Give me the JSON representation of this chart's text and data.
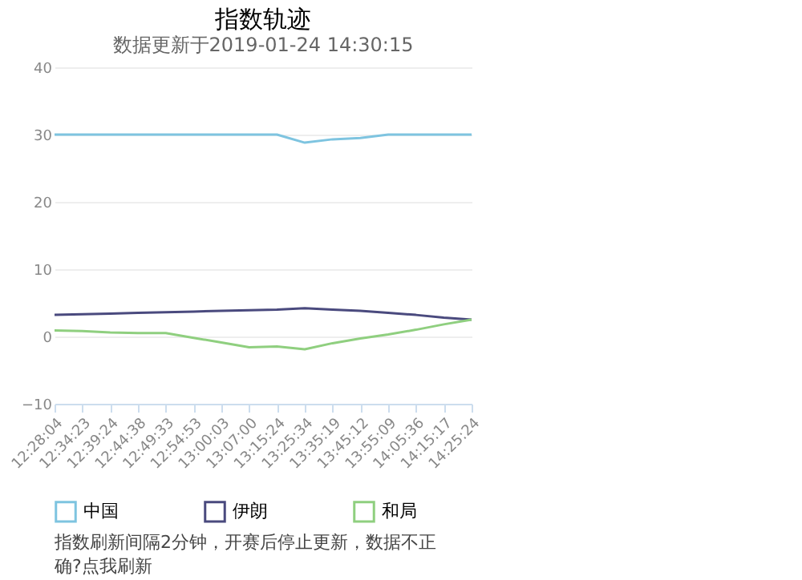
{
  "chart_data": {
    "type": "line",
    "title": "指数轨迹",
    "subtitle": "数据更新于2019-01-24 14:30:15",
    "categories": [
      "12:28:04",
      "12:34:23",
      "12:39:24",
      "12:44:38",
      "12:49:33",
      "12:54:53",
      "13:00:03",
      "13:07:00",
      "13:15:24",
      "13:25:34",
      "13:35:19",
      "13:45:12",
      "13:55:09",
      "14:05:36",
      "14:15:17",
      "14:25:24"
    ],
    "series": [
      {
        "name": "中国",
        "color": "#7ec4e0",
        "values": [
          30,
          30,
          30,
          30,
          30,
          30,
          30,
          30,
          30,
          28.8,
          29.3,
          29.5,
          30,
          30,
          30,
          30
        ]
      },
      {
        "name": "伊朗",
        "color": "#4a4a7e",
        "values": [
          3.2,
          3.3,
          3.4,
          3.5,
          3.6,
          3.7,
          3.8,
          3.9,
          4.0,
          4.2,
          4.0,
          3.8,
          3.5,
          3.2,
          2.8,
          2.5
        ]
      },
      {
        "name": "和局",
        "color": "#8fcf7f",
        "values": [
          0.9,
          0.8,
          0.6,
          0.5,
          0.5,
          -0.2,
          -0.9,
          -1.6,
          -1.5,
          -1.9,
          -1.0,
          -0.3,
          0.3,
          1.0,
          1.8,
          2.5
        ]
      }
    ],
    "ylim": [
      -10,
      40
    ],
    "yticks": [
      -10,
      0,
      10,
      20,
      30,
      40
    ],
    "grid": "y",
    "legend": "bottom",
    "marker": "none",
    "line_style": "solid",
    "annotations": [
      "指数刷新间隔2分钟，开赛后停止更新，数据不正确?点我刷新"
    ]
  }
}
